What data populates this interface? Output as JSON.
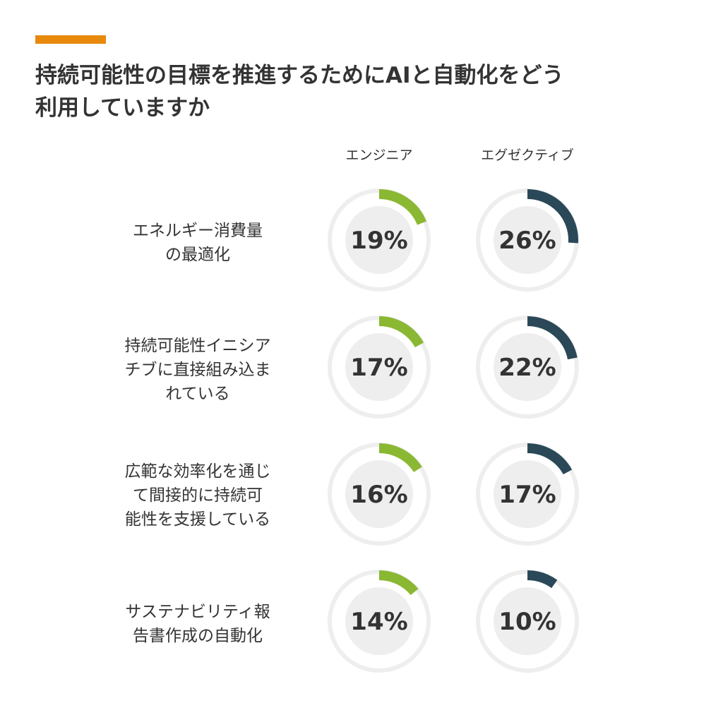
{
  "colors": {
    "accent": "#E8890C",
    "engineer": "#8AB833",
    "executive": "#2A4858",
    "track": "#EEEEEE",
    "text": "#333333"
  },
  "title": {
    "line1": "持続可能性の目標を推進するためにAIと自動化をどう",
    "line2": "利用していますか"
  },
  "chart_data": {
    "type": "donut",
    "series": [
      {
        "name": "エンジニア",
        "values": [
          19,
          17,
          16,
          14
        ]
      },
      {
        "name": "エグゼクティブ",
        "values": [
          26,
          22,
          17,
          10
        ]
      }
    ],
    "categories": [
      [
        "エネルギー消費量",
        "の最適化"
      ],
      [
        "持続可能性イニシア",
        "チブに直接組み込ま",
        "れている"
      ],
      [
        "広範な効率化を通じ",
        "て間接的に持続可",
        "能性を支援している"
      ],
      [
        "サステナビリティ報",
        "告書作成の自動化"
      ]
    ],
    "value_labels": [
      [
        "19%",
        "26%"
      ],
      [
        "17%",
        "22%"
      ],
      [
        "16%",
        "17%"
      ],
      [
        "14%",
        "10%"
      ]
    ],
    "ylim": [
      0,
      100
    ]
  }
}
